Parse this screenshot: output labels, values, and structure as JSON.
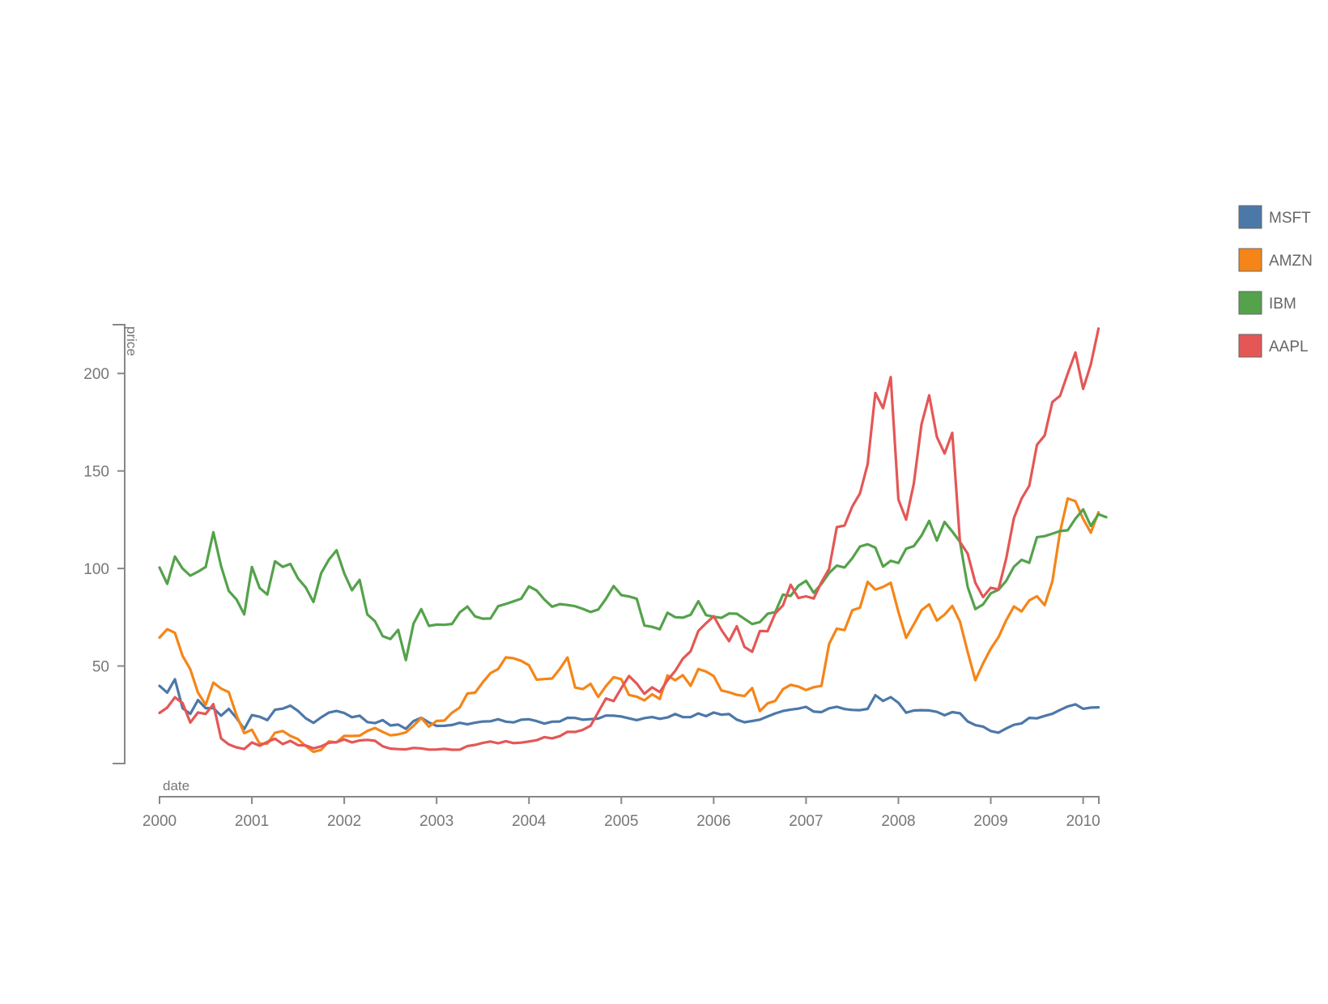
{
  "chart_data": {
    "type": "line",
    "title": "",
    "xlabel": "date",
    "ylabel": "price",
    "xlim": [
      2000.0,
      2010.17
    ],
    "ylim": [
      0,
      225
    ],
    "x_ticks": [
      "2000",
      "2001",
      "2002",
      "2003",
      "2004",
      "2005",
      "2006",
      "2007",
      "2008",
      "2009",
      "2010"
    ],
    "y_ticks": [
      "50",
      "100",
      "150",
      "200"
    ],
    "grid": false,
    "legend_position": "right",
    "start_date": "2000-01",
    "step": "monthly",
    "colors": {
      "MSFT": "#4c78a8",
      "AMZN": "#f58518",
      "IBM": "#54a24b",
      "AAPL": "#e45756"
    },
    "series": [
      {
        "name": "MSFT",
        "values": [
          39.81,
          36.35,
          43.22,
          28.37,
          25.45,
          32.54,
          28.4,
          28.4,
          24.53,
          28.02,
          23.34,
          17.65,
          24.84,
          24.0,
          22.25,
          27.56,
          28.14,
          29.7,
          26.93,
          23.21,
          20.82,
          23.65,
          26.12,
          26.95,
          25.92,
          23.73,
          24.53,
          21.26,
          20.71,
          22.25,
          19.52,
          19.97,
          17.79,
          21.75,
          23.46,
          21.03,
          19.31,
          19.34,
          19.76,
          20.87,
          20.09,
          20.93,
          21.56,
          21.65,
          22.69,
          21.45,
          21.1,
          22.46,
          22.69,
          21.77,
          20.46,
          21.45,
          21.53,
          23.44,
          23.38,
          22.47,
          22.76,
          23.02,
          24.6,
          24.52,
          24.11,
          23.15,
          22.24,
          23.28,
          23.82,
          22.93,
          23.64,
          25.35,
          23.83,
          23.8,
          25.71,
          24.29,
          26.14,
          25.04,
          25.36,
          22.5,
          21.19,
          21.8,
          22.51,
          24.13,
          25.68,
          26.96,
          27.66,
          28.13,
          29.07,
          26.63,
          26.35,
          28.3,
          29.11,
          27.95,
          27.5,
          27.34,
          28.04,
          35.03,
          32.09,
          34.02,
          31.13,
          26.07,
          27.21,
          27.34,
          27.25,
          26.47,
          24.75,
          26.36,
          25.78,
          21.57,
          19.66,
          18.91,
          16.63,
          15.81,
          17.99,
          19.84,
          20.59,
          23.42,
          23.18,
          24.43,
          25.49,
          27.48,
          29.27,
          30.34,
          28.05,
          28.67,
          28.8
        ]
      },
      {
        "name": "AMZN",
        "values": [
          64.56,
          68.87,
          67.0,
          55.19,
          48.31,
          36.31,
          30.12,
          41.5,
          38.44,
          36.62,
          24.69,
          15.56,
          17.31,
          10.19,
          10.23,
          15.78,
          16.69,
          14.15,
          12.49,
          8.94,
          5.97,
          6.98,
          11.32,
          10.82,
          14.19,
          14.1,
          14.3,
          16.69,
          18.23,
          16.25,
          14.45,
          14.94,
          15.93,
          19.36,
          23.35,
          18.89,
          21.85,
          22.01,
          26.03,
          28.69,
          35.89,
          36.32,
          41.64,
          46.32,
          48.43,
          54.43,
          53.97,
          52.62,
          50.4,
          43.01,
          43.28,
          43.6,
          48.5,
          54.4,
          38.92,
          38.14,
          40.86,
          34.13,
          39.68,
          44.29,
          43.22,
          35.18,
          34.27,
          32.36,
          35.51,
          33.09,
          45.15,
          42.7,
          45.3,
          39.86,
          48.46,
          47.15,
          44.82,
          37.44,
          36.53,
          35.21,
          34.61,
          38.68,
          26.89,
          30.83,
          32.12,
          38.09,
          40.34,
          39.46,
          37.67,
          39.14,
          39.79,
          61.33,
          69.14,
          68.41,
          78.54,
          79.91,
          93.15,
          89.15,
          90.56,
          92.64,
          77.7,
          64.47,
          71.3,
          78.63,
          81.62,
          73.33,
          76.34,
          80.81,
          72.76,
          57.24,
          42.7,
          51.28,
          58.82,
          64.79,
          73.44,
          80.52,
          77.99,
          83.66,
          85.76,
          81.19,
          93.36,
          118.81,
          135.91,
          134.52,
          125.41,
          118.4,
          128.82
        ]
      },
      {
        "name": "IBM",
        "values": [
          100.52,
          92.11,
          106.11,
          99.95,
          96.31,
          98.33,
          100.74,
          118.62,
          101.19,
          88.5,
          84.12,
          76.47,
          100.76,
          89.98,
          86.63,
          103.7,
          100.82,
          102.35,
          94.87,
          90.25,
          82.82,
          97.58,
          104.5,
          109.36,
          97.54,
          88.82,
          94.15,
          76.47,
          72.95,
          65.31,
          63.86,
          68.52,
          53.01,
          71.76,
          79.16,
          70.58,
          71.22,
          71.13,
          71.57,
          77.47,
          80.48,
          75.42,
          74.28,
          74.36,
          80.67,
          81.84,
          83.15,
          84.53,
          90.84,
          88.71,
          84.06,
          80.43,
          81.74,
          81.27,
          80.67,
          79.28,
          77.67,
          78.96,
          84.45,
          90.99,
          86.33,
          85.66,
          84.5,
          70.79,
          70.06,
          68.84,
          77.31,
          75.03,
          74.78,
          76.27,
          83.25,
          76.1,
          75.27,
          74.67,
          76.93,
          76.81,
          74.19,
          71.52,
          72.52,
          76.77,
          77.68,
          86.61,
          85.92,
          91.14,
          93.71,
          87.54,
          92.07,
          97.67,
          101.44,
          100.51,
          105.25,
          111.26,
          112.4,
          110.67,
          100.95,
          103.95,
          102.77,
          110.14,
          111.47,
          116.84,
          124.4,
          114.27,
          123.89,
          118.93,
          113.7,
          90.56,
          79.22,
          81.57,
          87.28,
          89.07,
          93.65,
          100.87,
          104.44,
          102.91,
          116.05,
          116.56,
          117.87,
          119.18,
          119.6,
          125.52,
          130.3,
          121.79,
          127.82,
          126.27
        ]
      },
      {
        "name": "AAPL",
        "values": [
          25.94,
          28.66,
          33.95,
          31.01,
          21.0,
          26.19,
          25.41,
          30.47,
          12.88,
          9.78,
          8.25,
          7.44,
          10.81,
          9.12,
          11.03,
          12.74,
          9.98,
          11.62,
          9.4,
          9.27,
          7.76,
          8.78,
          10.65,
          10.95,
          12.36,
          10.85,
          11.84,
          12.14,
          11.65,
          8.86,
          7.63,
          7.38,
          7.25,
          8.03,
          7.75,
          7.16,
          7.18,
          7.51,
          7.07,
          7.11,
          8.98,
          9.53,
          10.54,
          11.31,
          10.36,
          11.44,
          10.45,
          10.69,
          11.28,
          11.96,
          13.52,
          12.89,
          14.03,
          16.27,
          16.17,
          17.25,
          19.38,
          26.35,
          33.38,
          32.02,
          38.64,
          44.86,
          41.03,
          35.74,
          39.07,
          36.64,
          42.67,
          47.46,
          53.75,
          57.59,
          67.96,
          71.89,
          75.51,
          68.49,
          62.72,
          70.39,
          59.77,
          57.27,
          67.96,
          67.85,
          76.98,
          81.08,
          91.66,
          84.84,
          85.73,
          84.61,
          92.91,
          99.8,
          121.19,
          122.04,
          131.76,
          138.48,
          153.47,
          189.95,
          182.22,
          198.08,
          135.36,
          125.02,
          143.5,
          173.95,
          188.75,
          167.44,
          158.95,
          169.53,
          113.66,
          107.59,
          92.67,
          85.35,
          90.13,
          89.31,
          105.12,
          125.83,
          135.81,
          142.43,
          163.39,
          168.21,
          185.35,
          188.5,
          199.91,
          210.73,
          192.06,
          204.62,
          223.02
        ]
      }
    ]
  }
}
